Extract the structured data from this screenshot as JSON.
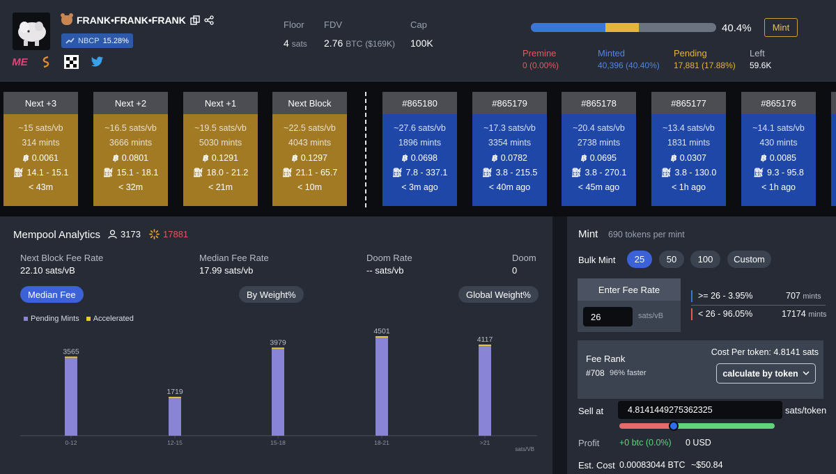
{
  "header": {
    "token_name": "FRANK•FRANK•FRANK",
    "nbcp": {
      "label": "NBCP",
      "value": "15.28%"
    },
    "socials": [
      "magic-eden-icon",
      "satflow-icon",
      "okx-icon",
      "twitter-icon"
    ],
    "stats": {
      "floor": {
        "label": "Floor",
        "value": "4",
        "unit": "sats"
      },
      "fdv": {
        "label": "FDV",
        "value": "2.76",
        "unit": "BTC",
        "usd": "($169K)"
      },
      "cap": {
        "label": "Cap",
        "value": "100K"
      }
    },
    "progress": {
      "percent_label": "40.4%",
      "minted_fraction": 0.404,
      "pending_fraction": 0.1788,
      "colors": {
        "minted": "#3b76d6",
        "pending": "#e2b53f",
        "rest": "#6b7280"
      }
    },
    "mint_button": "Mint",
    "summary": {
      "premine": {
        "label": "Premine",
        "value": "0 (0.00%)",
        "color": "#e85a5a"
      },
      "minted": {
        "label": "Minted",
        "value": "40,396 (40.40%)",
        "color": "#4e86e8"
      },
      "pending": {
        "label": "Pending",
        "value": "17,881 (17.88%)",
        "color": "#e7b53a"
      },
      "left": {
        "label": "Left",
        "value": "59.6K",
        "color": "#ffffff"
      }
    }
  },
  "blocks": {
    "pending": [
      {
        "title": "Next +3",
        "fee": "~15 sats/vb",
        "mints": "314 mints",
        "btc": "0.0061",
        "range": "14.1 - 15.1",
        "time": "< 43m"
      },
      {
        "title": "Next +2",
        "fee": "~16.5 sats/vb",
        "mints": "3666 mints",
        "btc": "0.0801",
        "range": "15.1 - 18.1",
        "time": "< 32m"
      },
      {
        "title": "Next +1",
        "fee": "~19.5 sats/vb",
        "mints": "5030 mints",
        "btc": "0.1291",
        "range": "18.0 - 21.2",
        "time": "< 21m"
      },
      {
        "title": "Next Block",
        "fee": "~22.5 sats/vb",
        "mints": "4043 mints",
        "btc": "0.1297",
        "range": "21.1 - 65.7",
        "time": "< 10m"
      }
    ],
    "mined": [
      {
        "title": "#865180",
        "fee": "~27.6 sats/vb",
        "mints": "1896 mints",
        "btc": "0.0698",
        "range": "7.8 - 337.1",
        "time": "< 3m ago"
      },
      {
        "title": "#865179",
        "fee": "~17.3 sats/vb",
        "mints": "3354 mints",
        "btc": "0.0782",
        "range": "3.8 - 215.5",
        "time": "< 40m ago"
      },
      {
        "title": "#865178",
        "fee": "~20.4 sats/vb",
        "mints": "2738 mints",
        "btc": "0.0695",
        "range": "3.8 - 270.1",
        "time": "< 45m ago"
      },
      {
        "title": "#865177",
        "fee": "~13.4 sats/vb",
        "mints": "1831 mints",
        "btc": "0.0307",
        "range": "3.8 - 130.0",
        "time": "< 1h ago"
      },
      {
        "title": "#865176",
        "fee": "~14.1 sats/vb",
        "mints": "430 mints",
        "btc": "0.0085",
        "range": "9.3 - 95.8",
        "time": "< 1h ago"
      }
    ]
  },
  "analytics": {
    "title": "Mempool Analytics",
    "holders": "3173",
    "pending_count": "17881",
    "metrics": [
      {
        "label": "Next Block Fee Rate",
        "value": "22.10 sats/vB"
      },
      {
        "label": "Median Fee Rate",
        "value": "17.99 sats/vb"
      },
      {
        "label": "Doom Rate",
        "value": "-- sats/vb"
      },
      {
        "label": "Doom",
        "value": "0"
      }
    ],
    "tabs": [
      "Median Fee",
      "By Weight%",
      "Global Weight%"
    ],
    "legend": {
      "pending": "Pending Mints",
      "accelerated": "Accelerated"
    }
  },
  "chart_data": {
    "type": "bar",
    "categories": [
      "0-12",
      "12-15",
      "15-18",
      "18-21",
      ">21"
    ],
    "series": [
      {
        "name": "Pending Mints",
        "values": [
          3565,
          1719,
          3979,
          4501,
          4117
        ],
        "color": "#8a84d6"
      },
      {
        "name": "Accelerated",
        "values": [
          0,
          0,
          0,
          0,
          0
        ],
        "color": "#e7c93a"
      }
    ],
    "data_labels": [
      "3565",
      "1719",
      "3979",
      "4501",
      "4117"
    ],
    "xlabel": "sats/VB",
    "ylim": [
      0,
      5200
    ]
  },
  "mint": {
    "title": "Mint",
    "subtitle": "690 tokens per mint",
    "bulk_label": "Bulk Mint",
    "bulk_options": [
      "25",
      "50",
      "100",
      "Custom"
    ],
    "fee_box_title": "Enter Fee Rate",
    "fee_value": "26",
    "fee_unit": "sats/vB",
    "split": [
      {
        "label": ">= 26 - ",
        "pct": "3.95%",
        "count": "707",
        "unit": "mints",
        "color": "#3b76d6"
      },
      {
        "label": "< 26 - ",
        "pct": "96.05%",
        "count": "17174",
        "unit": "mints",
        "color": "#e85a5a"
      }
    ],
    "fee_rank_label": "Fee Rank",
    "fee_rank_value": "#708",
    "fee_rank_note": "96% faster",
    "cost_per_token": "Cost Per token: 4.8141 sats",
    "calc_button": "calculate by token",
    "sell_label": "Sell at",
    "sell_value": "4.8141449275362325",
    "sell_unit": "sats/token",
    "profit_label": "Profit",
    "profit_btc": "+0 btc (0.0%)",
    "profit_usd": "0 USD",
    "cost_label": "Est. Cost",
    "cost_btc": "0.00083044 BTC",
    "cost_usd": "~$50.84"
  }
}
